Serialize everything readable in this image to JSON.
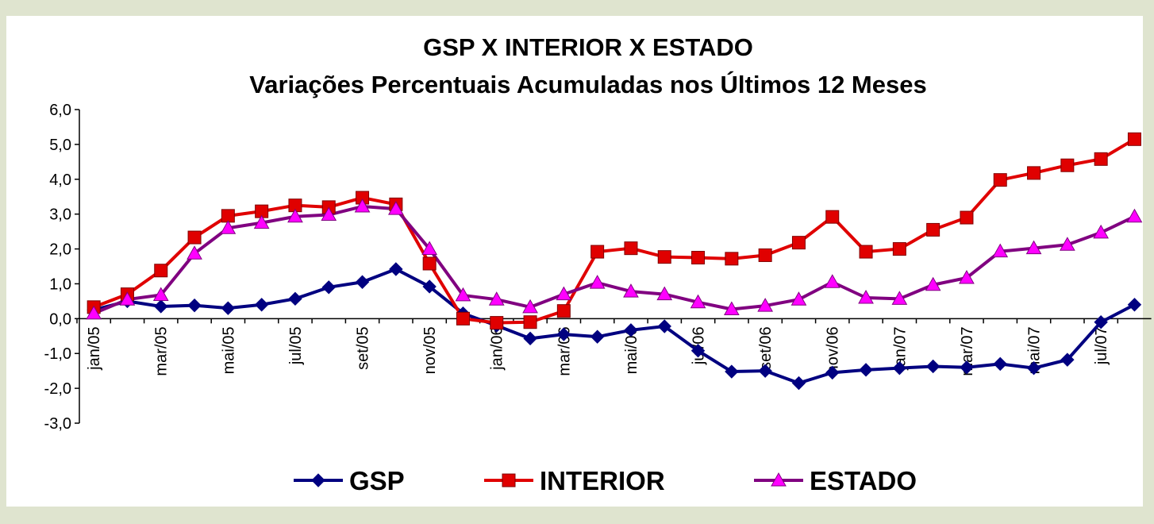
{
  "chart_data": {
    "type": "line",
    "title": "GSP X INTERIOR X ESTADO",
    "subtitle": "Variações Percentuais Acumuladas nos Últimos 12 Meses",
    "categories": [
      "jan/05",
      null,
      "mar/05",
      null,
      "mai/05",
      null,
      "jul/05",
      null,
      "set/05",
      null,
      "nov/05",
      null,
      "jan/06",
      null,
      "mar/06",
      null,
      "mai/06",
      null,
      "jul/06",
      null,
      "set/06",
      null,
      "nov/06",
      null,
      "jan/07",
      null,
      "mar/07",
      null,
      "mai/07",
      null,
      "jul/07",
      null
    ],
    "series": [
      {
        "name": "GSP",
        "color": "#000080",
        "marker_color": "#000080",
        "marker": "diamond",
        "values": [
          0.25,
          0.5,
          0.35,
          0.38,
          0.3,
          0.4,
          0.57,
          0.9,
          1.05,
          1.42,
          0.92,
          0.15,
          -0.2,
          -0.57,
          -0.45,
          -0.52,
          -0.33,
          -0.22,
          -0.92,
          -1.52,
          -1.5,
          -1.85,
          -1.55,
          -1.47,
          -1.42,
          -1.37,
          -1.4,
          -1.3,
          -1.42,
          -1.18,
          -0.1,
          0.4
        ]
      },
      {
        "name": "INTERIOR",
        "color": "#e00000",
        "marker_color": "#e00000",
        "marker": "square",
        "values": [
          0.33,
          0.7,
          1.38,
          2.33,
          2.95,
          3.08,
          3.25,
          3.2,
          3.47,
          3.28,
          1.58,
          0.0,
          -0.12,
          -0.1,
          0.22,
          1.92,
          2.02,
          1.77,
          1.75,
          1.72,
          1.82,
          2.18,
          2.92,
          1.92,
          2.0,
          2.55,
          2.9,
          3.98,
          4.18,
          4.4,
          4.58,
          5.15
        ]
      },
      {
        "name": "ESTADO",
        "color": "#800080",
        "marker_color": "#ff00ff",
        "marker": "triangle",
        "values": [
          0.15,
          0.55,
          0.68,
          1.87,
          2.6,
          2.75,
          2.93,
          2.98,
          3.22,
          3.15,
          2.0,
          0.67,
          0.55,
          0.33,
          0.7,
          1.03,
          0.78,
          0.7,
          0.47,
          0.27,
          0.37,
          0.55,
          1.05,
          0.6,
          0.57,
          0.97,
          1.17,
          1.93,
          2.02,
          2.12,
          2.47,
          2.93
        ]
      }
    ],
    "ylim": [
      -3,
      6
    ],
    "yticks": [
      {
        "value": -3,
        "label": "-3,0"
      },
      {
        "value": -2,
        "label": "-2,0"
      },
      {
        "value": -1,
        "label": "-1,0"
      },
      {
        "value": 0,
        "label": "0,0"
      },
      {
        "value": 1,
        "label": "1,0"
      },
      {
        "value": 2,
        "label": "2,0"
      },
      {
        "value": 3,
        "label": "3,0"
      },
      {
        "value": 4,
        "label": "4,0"
      },
      {
        "value": 5,
        "label": "5,0"
      },
      {
        "value": 6,
        "label": "6,0"
      }
    ],
    "grid": false,
    "legend": "bottom"
  }
}
